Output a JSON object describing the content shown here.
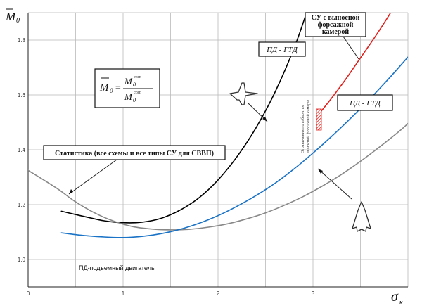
{
  "chart_data": {
    "type": "line",
    "y_axis_symbol": "M",
    "y_axis_subscript": "0",
    "x_axis_symbol": "σ",
    "x_axis_subscript": "к",
    "xlim": [
      0,
      4
    ],
    "ylim": [
      0.9,
      1.9
    ],
    "x_ticks": [
      0,
      1,
      2,
      3
    ],
    "x_tick_labels": [
      "0",
      "1",
      "2",
      "3"
    ],
    "y_ticks": [
      1.0,
      1.2,
      1.4,
      1.6,
      1.8
    ],
    "y_tick_labels": [
      "1.0",
      "1.2",
      "1.4",
      "1.6",
      "1.8"
    ],
    "grid": true,
    "series": [
      {
        "color": "#000000",
        "width": 1.6,
        "x": [
          0.35,
          0.6,
          0.8,
          1.0,
          1.2,
          1.4,
          1.6,
          1.8,
          2.0,
          2.2,
          2.4,
          2.6,
          2.8,
          2.95,
          3.08
        ],
        "y": [
          1.176,
          1.156,
          1.141,
          1.134,
          1.136,
          1.15,
          1.18,
          1.225,
          1.29,
          1.375,
          1.48,
          1.61,
          1.77,
          1.92,
          2.08
        ]
      },
      {
        "color": "#888888",
        "width": 1.6,
        "x": [
          0.0,
          0.3,
          0.5,
          0.7,
          0.9,
          1.1,
          1.3,
          1.5,
          1.7,
          1.9,
          2.1,
          2.3,
          2.5,
          2.7,
          2.9,
          3.1,
          3.3,
          3.5,
          3.7,
          3.9,
          4.0
        ],
        "y": [
          1.325,
          1.26,
          1.21,
          1.17,
          1.14,
          1.12,
          1.111,
          1.108,
          1.11,
          1.118,
          1.13,
          1.148,
          1.17,
          1.198,
          1.23,
          1.268,
          1.31,
          1.358,
          1.41,
          1.465,
          1.496
        ]
      },
      {
        "color": "#1a73c6",
        "width": 1.6,
        "x": [
          0.35,
          0.6,
          0.8,
          1.0,
          1.2,
          1.4,
          1.6,
          1.8,
          2.0,
          2.2,
          2.4,
          2.6,
          2.8,
          3.0,
          3.2,
          3.4,
          3.6,
          3.8,
          4.0
        ],
        "y": [
          1.097,
          1.087,
          1.082,
          1.08,
          1.084,
          1.094,
          1.11,
          1.132,
          1.16,
          1.194,
          1.233,
          1.278,
          1.33,
          1.388,
          1.45,
          1.516,
          1.586,
          1.66,
          1.738
        ]
      },
      {
        "color": "#e0201c",
        "width": 1.6,
        "x": [
          3.05,
          3.2,
          3.35,
          3.5,
          3.65,
          3.8,
          3.95
        ],
        "y": [
          1.525,
          1.59,
          1.66,
          1.735,
          1.81,
          1.89,
          1.975
        ]
      }
    ],
    "formula": {
      "lhs_symbol": "M",
      "lhs_subscript": "0",
      "num_symbol": "M",
      "num_subscript": "0",
      "num_superscript": "ссвп",
      "den_symbol": "M",
      "den_subscript": "0",
      "den_superscript": "ссвп"
    },
    "annotations": [
      {
        "kind": "boxed",
        "lines": [
          "СУ с выносной",
          "форсажной",
          "камерой"
        ]
      },
      {
        "kind": "boxed",
        "lines": [
          "ПД - ГТД"
        ]
      },
      {
        "kind": "boxed",
        "lines": [
          "ПД - ГТД"
        ]
      },
      {
        "kind": "boxed",
        "lines": [
          "Статистика (все схемы и все типы СУ для СВВП)"
        ]
      },
      {
        "kind": "plain",
        "lines": [
          "ПД-подъемный двигатель"
        ]
      },
      {
        "kind": "vertical",
        "lines": [
          "Ограничения по габаритам",
          "выносной форсажной камеры"
        ]
      }
    ]
  }
}
